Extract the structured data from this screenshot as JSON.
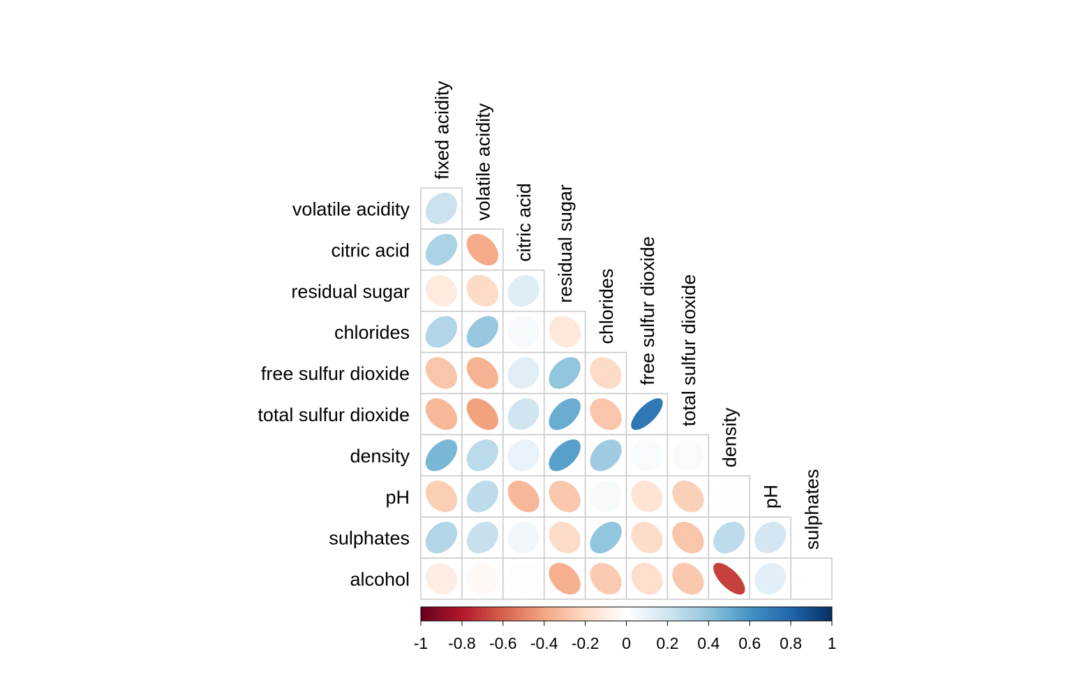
{
  "chart_data": {
    "type": "heatmap",
    "title": "",
    "xlabel": "",
    "ylabel": "",
    "shape": "ellipse",
    "layout": "lower-triangle",
    "columns": [
      "fixed acidity",
      "volatile acidity",
      "citric acid",
      "residual sugar",
      "chlorides",
      "free sulfur dioxide",
      "total sulfur dioxide",
      "density",
      "pH",
      "sulphates"
    ],
    "rows": [
      "volatile acidity",
      "citric acid",
      "residual sugar",
      "chlorides",
      "free sulfur dioxide",
      "total sulfur dioxide",
      "density",
      "pH",
      "sulphates",
      "alcohol"
    ],
    "values": [
      [
        0.22
      ],
      [
        0.32,
        -0.38
      ],
      [
        -0.11,
        -0.2,
        0.14
      ],
      [
        0.3,
        0.38,
        0.04,
        -0.13
      ],
      [
        -0.28,
        -0.35,
        0.13,
        0.4,
        -0.2
      ],
      [
        -0.33,
        -0.41,
        0.2,
        0.5,
        -0.28,
        0.72
      ],
      [
        0.46,
        0.27,
        0.1,
        0.55,
        0.36,
        0.03,
        0.03
      ],
      [
        -0.25,
        0.26,
        -0.33,
        -0.27,
        0.04,
        -0.15,
        -0.24,
        0.01
      ],
      [
        0.3,
        0.23,
        0.06,
        -0.19,
        0.4,
        -0.19,
        -0.28,
        0.26,
        0.19
      ],
      [
        -0.1,
        -0.04,
        -0.01,
        -0.36,
        -0.26,
        -0.18,
        -0.27,
        -0.69,
        0.12,
        0.0
      ]
    ],
    "colorbar": {
      "range": [
        -1,
        1
      ],
      "ticks": [
        "-1",
        "-0.8",
        "-0.6",
        "-0.4",
        "-0.2",
        "0",
        "0.2",
        "0.4",
        "0.6",
        "0.8",
        "1"
      ],
      "palette": [
        "#67001F",
        "#B2182B",
        "#D6604D",
        "#F4A582",
        "#FDDBC7",
        "#FFFFFF",
        "#D1E5F0",
        "#92C5DE",
        "#4393C3",
        "#2166AC",
        "#053061"
      ]
    },
    "grid": true,
    "legend_position": "bottom"
  }
}
